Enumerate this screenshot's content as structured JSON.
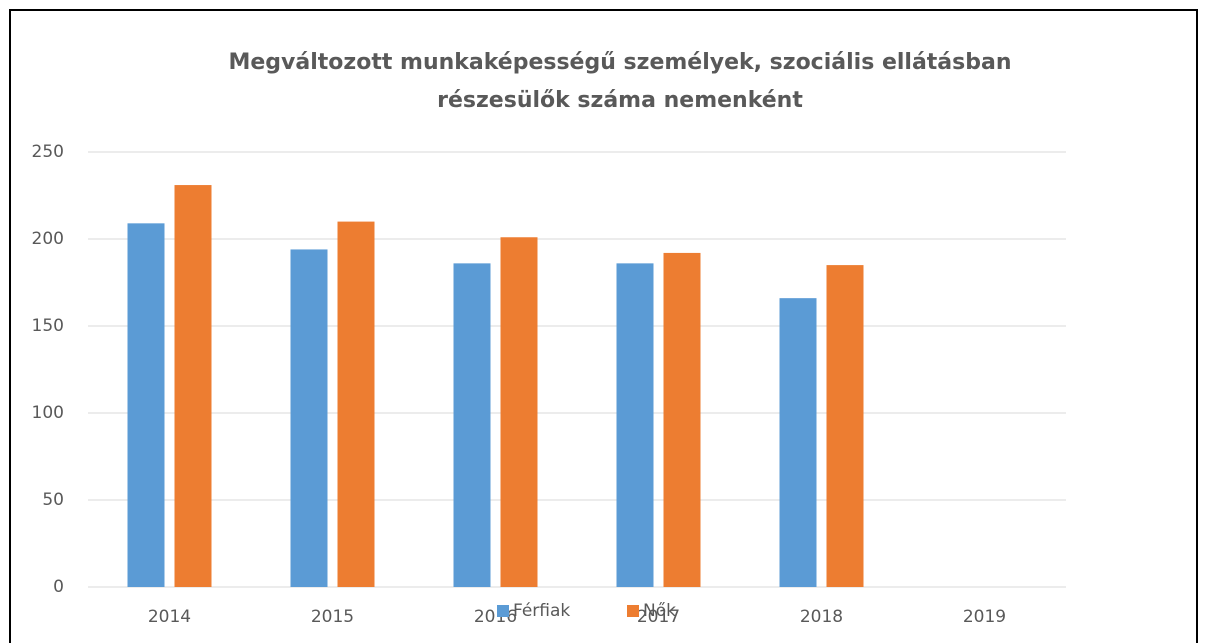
{
  "chart_data": {
    "type": "bar",
    "title": "Megváltozott munkaképességű személyek, szociális ellátásban részesülők száma nemenként",
    "categories": [
      "2014",
      "2015",
      "2016",
      "2017",
      "2018",
      "2019"
    ],
    "series": [
      {
        "name": "Férfiak",
        "color": "#5b9bd5",
        "values": [
          209,
          194,
          186,
          186,
          166,
          null
        ]
      },
      {
        "name": "Nők",
        "color": "#ed7d31",
        "values": [
          231,
          210,
          201,
          192,
          185,
          null
        ]
      }
    ],
    "ylim": [
      0,
      250
    ],
    "yticks": [
      0,
      50,
      100,
      150,
      200,
      250
    ],
    "grid": true,
    "legend": "bottom"
  }
}
